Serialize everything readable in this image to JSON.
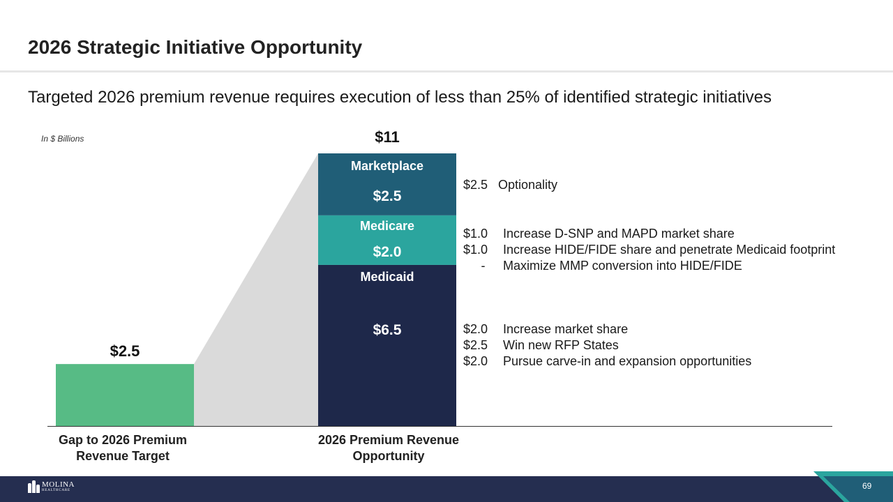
{
  "slide": {
    "title": "2026 Strategic Initiative Opportunity",
    "subtitle": "Targeted 2026 premium revenue requires execution of less than 25% of identified strategic initiatives",
    "units_note": "In $ Billions",
    "page_number": "69"
  },
  "logo": {
    "name": "MOLINA",
    "sub": "HEALTHCARE"
  },
  "chart_data": {
    "type": "bar",
    "units": "$ Billions",
    "categories": [
      "Gap to 2026 Premium Revenue Target",
      "2026 Premium Revenue Opportunity"
    ],
    "category_labels": [
      [
        "Gap to 2026 Premium",
        "Revenue Target"
      ],
      [
        "2026 Premium Revenue",
        "Opportunity"
      ]
    ],
    "ylim": [
      0,
      11
    ],
    "bars": [
      {
        "category": "Gap to 2026 Premium Revenue Target",
        "value": 2.5,
        "label": "$2.5",
        "color": "#57bb85"
      },
      {
        "category": "2026 Premium Revenue Opportunity",
        "total": 11,
        "total_label": "$11",
        "segments": [
          {
            "name": "Medicaid",
            "value": 6.5,
            "label": "$6.5",
            "color": "#1e284a"
          },
          {
            "name": "Medicare",
            "value": 2.0,
            "label": "$2.0",
            "color": "#2ba59e"
          },
          {
            "name": "Marketplace",
            "value": 2.5,
            "label": "$2.5",
            "color": "#205e77"
          }
        ]
      }
    ],
    "connector_color": "#dadada"
  },
  "annotations": {
    "marketplace": [
      {
        "value": "$2.5",
        "text": "Optionality"
      }
    ],
    "medicare": [
      {
        "value": "$1.0",
        "text": "Increase D-SNP and MAPD market share"
      },
      {
        "value": "$1.0",
        "text": "Increase HIDE/FIDE share and penetrate Medicaid footprint"
      },
      {
        "value": "-",
        "text": "Maximize MMP conversion into HIDE/FIDE"
      }
    ],
    "medicaid": [
      {
        "value": "$2.0",
        "text": "Increase market share"
      },
      {
        "value": "$2.5",
        "text": "Win new RFP States"
      },
      {
        "value": "$2.0",
        "text": "Pursue carve-in and expansion opportunities"
      }
    ]
  },
  "colors": {
    "footer": "#252e50",
    "footer_accent_light": "#2ba59e",
    "footer_accent_dark": "#205e77"
  }
}
